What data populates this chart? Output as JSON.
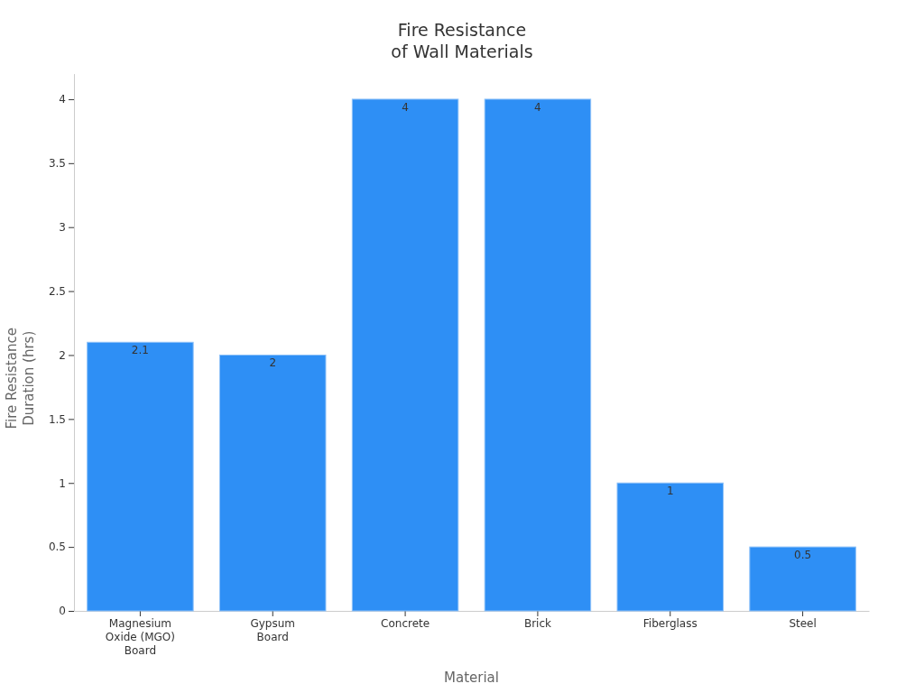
{
  "chart_data": {
    "type": "bar",
    "title": "Fire Resistance\nof Wall Materials",
    "xlabel": "Material",
    "ylabel": "Fire Resistance Duration (hrs)",
    "categories": [
      "Magnesium Oxide (MGO) Board",
      "Gypsum Board",
      "Concrete",
      "Brick",
      "Fiberglass",
      "Steel"
    ],
    "values": [
      2.1,
      2,
      4,
      4,
      1,
      0.5
    ],
    "color": "#2e8ff5",
    "ylim": [
      0,
      4.2
    ],
    "yticks": [
      0,
      0.5,
      1,
      1.5,
      2,
      2.5,
      3,
      3.5,
      4
    ],
    "grid": false,
    "data_labels": true
  }
}
